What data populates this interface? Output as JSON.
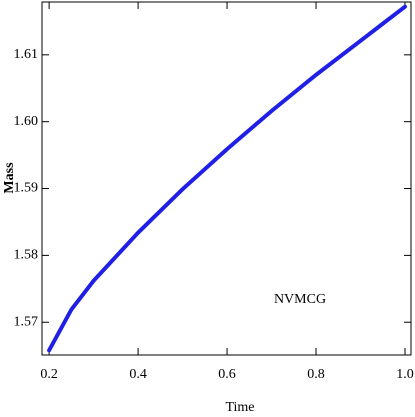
{
  "chart_data": {
    "type": "line",
    "x_label": "Time",
    "y_label": "Mass",
    "annotation": "NVMCG",
    "x": [
      0.2,
      0.25,
      0.3,
      0.4,
      0.5,
      0.6,
      0.7,
      0.8,
      0.9,
      1.0
    ],
    "series": [
      {
        "color": "#1f1fe6",
        "values": [
          1.5658,
          1.5719,
          1.5762,
          1.5834,
          1.5899,
          1.5959,
          1.6016,
          1.607,
          1.6121,
          1.6172
        ]
      }
    ],
    "xlim": [
      0.184,
      1.0135
    ],
    "ylim": [
      1.5651,
      1.6179
    ],
    "xticks": [
      0.2,
      0.4,
      0.6,
      0.8,
      {
        "value": 1,
        "label": "1.0"
      }
    ],
    "yticks": [
      1.57,
      1.58,
      1.59,
      {
        "value": 1.6,
        "label": "1.60"
      },
      1.61
    ]
  }
}
